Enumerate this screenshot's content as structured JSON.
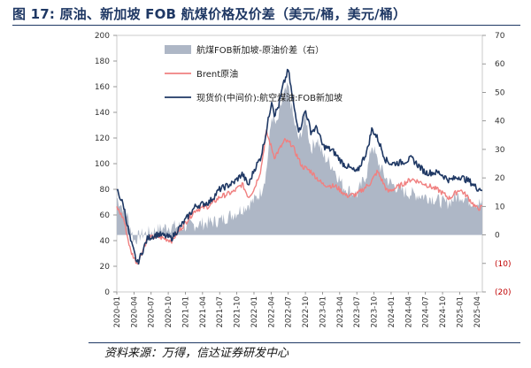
{
  "figure": {
    "title": "图 17: 原油、新加坡 FOB 航煤价格及价差（美元/桶，美元/桶）",
    "source": "资料来源：万得，信达证券研发中心"
  },
  "chart_data": {
    "type": "line",
    "x_ticks": [
      "2020-01",
      "2020-04",
      "2020-07",
      "2020-10",
      "2021-01",
      "2021-04",
      "2021-07",
      "2021-10",
      "2022-01",
      "2022-04",
      "2022-07",
      "2022-10",
      "2023-01",
      "2023-04",
      "2023-07",
      "2023-10",
      "2024-01",
      "2024-04",
      "2024-07",
      "2024-10",
      "2025-01",
      "2025-04"
    ],
    "y_left": {
      "min": 0,
      "max": 200,
      "ticks": [
        "0",
        "20",
        "40",
        "60",
        "80",
        "100",
        "120",
        "140",
        "160",
        "180",
        "200"
      ]
    },
    "y_right": {
      "min": -20,
      "max": 70,
      "ticks": [
        "(20)",
        "(10)",
        "0",
        "10",
        "20",
        "30",
        "40",
        "50",
        "60",
        "70"
      ]
    },
    "series": [
      {
        "name": "航煤FOB新加坡-原油价差（右）",
        "kind": "area",
        "axis": "right",
        "color": "#aeb7c6",
        "x": [
          2020.0,
          2020.15,
          2020.25,
          2020.35,
          2020.5,
          2020.75,
          2021.0,
          2021.25,
          2021.5,
          2021.75,
          2022.0,
          2022.1,
          2022.18,
          2022.26,
          2022.33,
          2022.42,
          2022.5,
          2022.58,
          2022.66,
          2022.75,
          2022.83,
          2022.92,
          2023.0,
          2023.15,
          2023.3,
          2023.5,
          2023.65,
          2023.72,
          2023.8,
          2023.92,
          2024.0,
          2024.2,
          2024.4,
          2024.6,
          2024.8,
          2025.0,
          2025.15,
          2025.3
        ],
        "values": [
          13,
          7,
          -2,
          0,
          1,
          3,
          3,
          4,
          5,
          8,
          12,
          15,
          22,
          42,
          38,
          48,
          52,
          40,
          33,
          42,
          30,
          34,
          28,
          24,
          17,
          14,
          22,
          32,
          26,
          20,
          18,
          15,
          14,
          13,
          11,
          14,
          12,
          11
        ]
      },
      {
        "name": "Brent原油",
        "kind": "line",
        "axis": "left",
        "color": "#f08080",
        "x": [
          2020.0,
          2020.1,
          2020.2,
          2020.3,
          2020.45,
          2020.6,
          2020.8,
          2021.0,
          2021.15,
          2021.35,
          2021.5,
          2021.7,
          2021.83,
          2021.92,
          2022.0,
          2022.1,
          2022.18,
          2022.3,
          2022.45,
          2022.55,
          2022.7,
          2022.83,
          2023.0,
          2023.2,
          2023.35,
          2023.5,
          2023.7,
          2023.8,
          2023.95,
          2024.1,
          2024.3,
          2024.5,
          2024.7,
          2024.85,
          2025.0,
          2025.1,
          2025.25,
          2025.35
        ],
        "values": [
          66,
          57,
          32,
          22,
          42,
          43,
          40,
          54,
          64,
          67,
          74,
          78,
          84,
          74,
          80,
          95,
          125,
          105,
          118,
          115,
          98,
          94,
          84,
          82,
          75,
          76,
          85,
          94,
          78,
          82,
          88,
          84,
          79,
          73,
          80,
          75,
          65,
          66
        ]
      },
      {
        "name": "现货价(中间价):航空煤油:FOB新加坡",
        "kind": "line",
        "axis": "left",
        "color": "#1f3864",
        "x": [
          2020.0,
          2020.1,
          2020.2,
          2020.3,
          2020.45,
          2020.6,
          2020.8,
          2021.0,
          2021.15,
          2021.35,
          2021.5,
          2021.7,
          2021.83,
          2021.92,
          2022.0,
          2022.1,
          2022.18,
          2022.26,
          2022.3,
          2022.36,
          2022.42,
          2022.5,
          2022.58,
          2022.66,
          2022.75,
          2022.83,
          2022.92,
          2023.0,
          2023.15,
          2023.3,
          2023.5,
          2023.65,
          2023.72,
          2023.8,
          2023.92,
          2024.0,
          2024.15,
          2024.3,
          2024.5,
          2024.7,
          2024.85,
          2025.0,
          2025.15,
          2025.25,
          2025.35
        ],
        "values": [
          80,
          67,
          40,
          22,
          42,
          45,
          42,
          56,
          67,
          70,
          80,
          85,
          92,
          83,
          95,
          105,
          125,
          150,
          138,
          145,
          160,
          173,
          145,
          125,
          142,
          125,
          128,
          114,
          110,
          100,
          93,
          110,
          127,
          120,
          103,
          100,
          101,
          104,
          93,
          93,
          87,
          90,
          86,
          81,
          80
        ]
      }
    ]
  }
}
